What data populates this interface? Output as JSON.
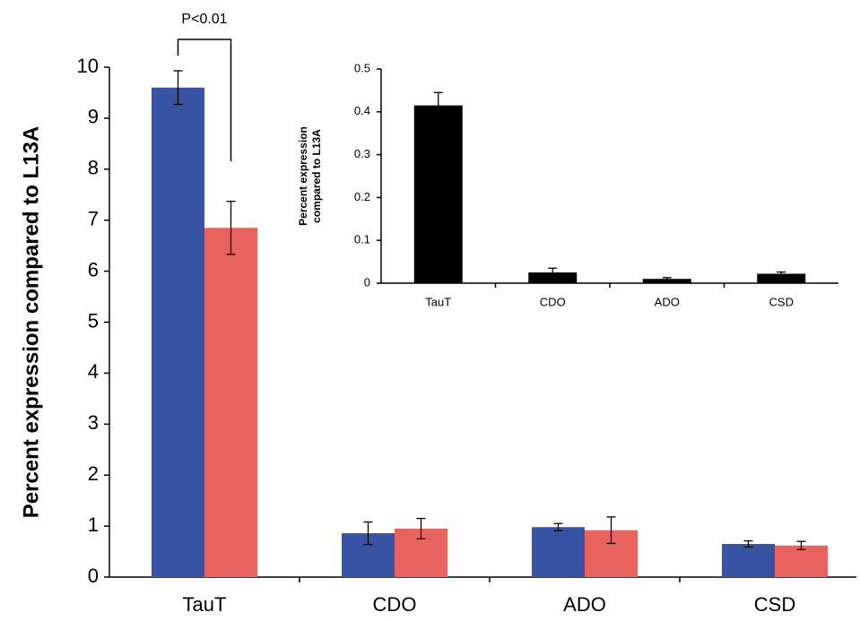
{
  "chart_data": [
    {
      "type": "bar",
      "ylabel": "Percent expression compared to L13A",
      "categories": [
        "TauT",
        "CDO",
        "ADO",
        "CSD"
      ],
      "series": [
        {
          "color": "#3953a4",
          "values": [
            9.6,
            0.86,
            0.98,
            0.65
          ],
          "errors": [
            0.33,
            0.22,
            0.07,
            0.06
          ]
        },
        {
          "color": "#e8635d",
          "values": [
            6.85,
            0.95,
            0.92,
            0.62
          ],
          "errors": [
            0.52,
            0.2,
            0.26,
            0.08
          ]
        }
      ],
      "annotation": "P<0.01",
      "ylim": [
        0,
        10
      ],
      "yticks": [
        0,
        1,
        2,
        3,
        4,
        5,
        6,
        7,
        8,
        9,
        10
      ]
    },
    {
      "type": "bar",
      "ylabel_lines": [
        "Percent expression",
        "compared to L13A"
      ],
      "categories": [
        "TauT",
        "CDO",
        "ADO",
        "CSD"
      ],
      "series": [
        {
          "color": "#000000",
          "values": [
            0.415,
            0.025,
            0.01,
            0.022
          ],
          "errors": [
            0.03,
            0.01,
            0.003,
            0.004
          ]
        }
      ],
      "ylim": [
        0,
        0.5
      ],
      "yticks": [
        0,
        0.1,
        0.2,
        0.3,
        0.4,
        0.5
      ]
    }
  ]
}
